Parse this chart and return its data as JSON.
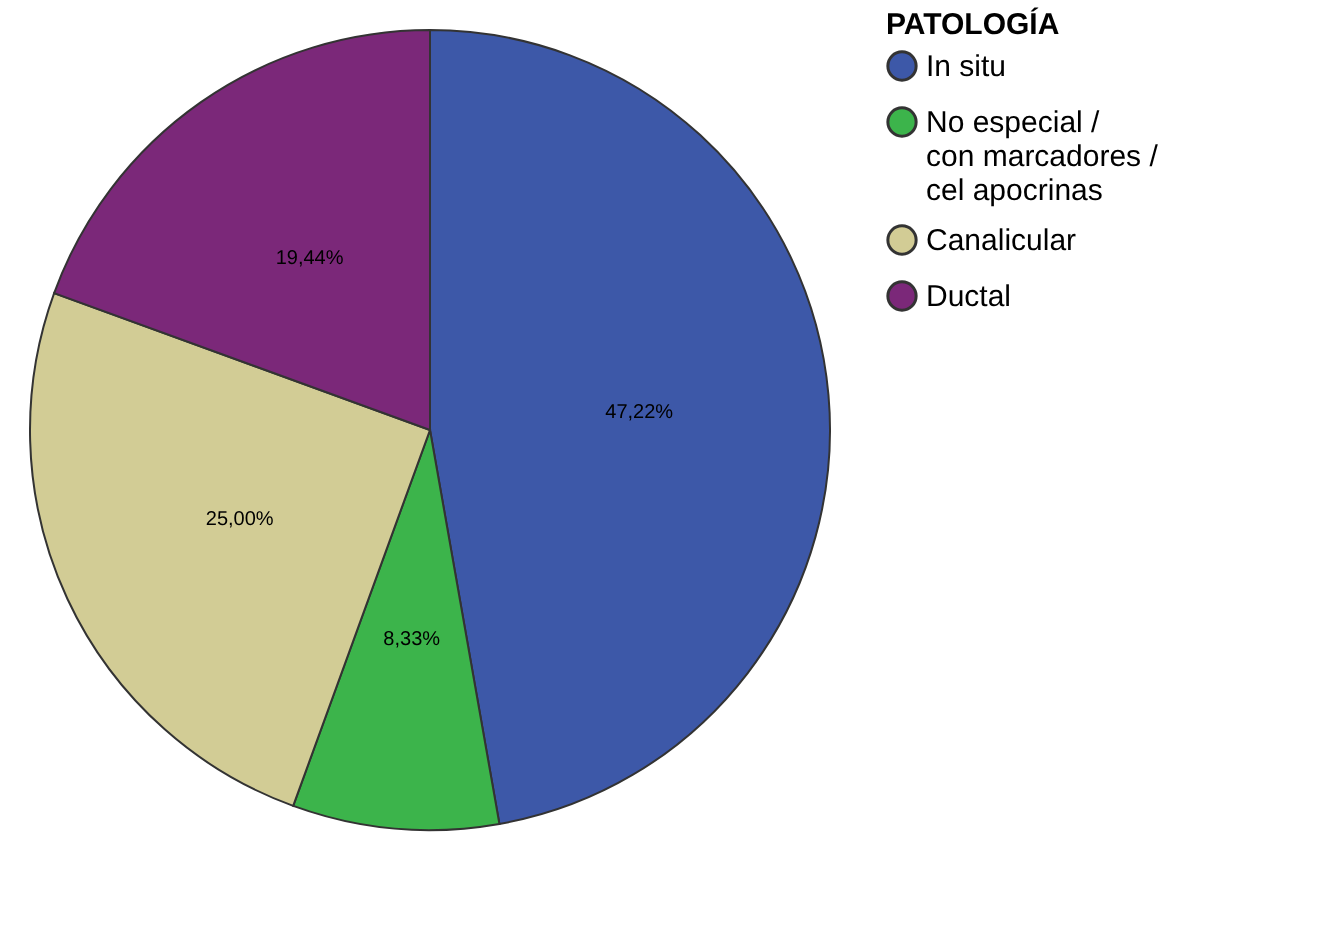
{
  "chart_data": {
    "type": "pie",
    "legend_title": "PATOLOGÍA",
    "categories": [
      "In situ",
      "No especial /\ncon marcadores /\ncel apocrinas",
      "Canalicular",
      "Ductal"
    ],
    "values": [
      47.22,
      8.33,
      25.0,
      19.44
    ],
    "colors": [
      "#3d58a8",
      "#3cb44b",
      "#d2cc95",
      "#7b2879"
    ],
    "value_labels": [
      "47,22%",
      "8,33%",
      "25,00%",
      "19,44%"
    ],
    "legend": "top right"
  }
}
